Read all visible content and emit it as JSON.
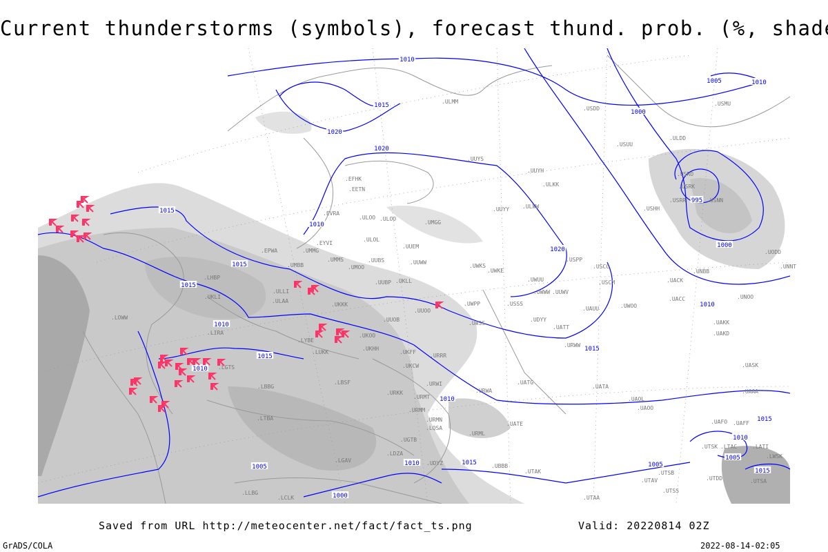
{
  "title": "Current thunderstorms (symbols), forecast thund. prob. (%, shaded)",
  "footer": {
    "source": "Saved from URL http://meteocenter.net/fact/fact_ts.png",
    "valid": "Valid: 20220814 02Z",
    "software": "GrADS/COLA",
    "timestamp": "2022-08-14-02:05"
  },
  "colors": {
    "isobar": "#0000ff",
    "coastline": "#999999",
    "thunderstorm_symbol": "#ff3366",
    "shading_light": "#dcdcdc",
    "shading_mid": "#c4c4c4",
    "shading_dark": "#a8a8a8"
  },
  "isobar_labels": [
    "1010",
    "1015",
    "1020",
    "1015",
    "1020",
    "1015",
    "1015",
    "1010",
    "1010",
    "1015",
    "1020",
    "1015",
    "1010",
    "1010",
    "1000",
    "1005",
    "1010",
    "995",
    "1000",
    "1010",
    "1015",
    "1010",
    "1005",
    "1005",
    "1000",
    "1010",
    "1015",
    "1005",
    "1015"
  ],
  "stations": [
    "ULMM",
    "ULOO",
    "EFHK",
    "EETN",
    "EVRA",
    "ULOO",
    "ULOL",
    "UUEM",
    "UUWW",
    "UMMG",
    "UMMS",
    "UMOO",
    "UUBS",
    "UMBB",
    "EYVI",
    "EPWA",
    "UKKK",
    "ULLI",
    "ULAA",
    "UUYS",
    "UUYH",
    "ULKK",
    "UUYY",
    "ULWW",
    "UMGG",
    "UUBP",
    "UKLL",
    "UKLI",
    "LHBP",
    "LOWW",
    "LIRA",
    "LYBE",
    "LUKK",
    "UKOO",
    "UKHH",
    "UUOB",
    "UUOO",
    "UWPP",
    "UWSS",
    "UWKS",
    "UWKE",
    "UWUU",
    "UWWW",
    "UUWV",
    "USSS",
    "USCC",
    "USCM",
    "UAUU",
    "UWOO",
    "UATT",
    "URWW",
    "URRR",
    "UKCW",
    "UKFF",
    "LBSF",
    "LGTS",
    "LBBG",
    "LTBA",
    "URWI",
    "URKK",
    "URMT",
    "URMM",
    "URMN",
    "URML",
    "UGTB",
    "UBBB",
    "UDYZ",
    "UTAK",
    "UATG",
    "UATE",
    "URWA",
    "UATA",
    "UAOL",
    "UAOO",
    "USUU",
    "UACK",
    "UACC",
    "UAKK",
    "UAKD",
    "USNN",
    "USRR",
    "USRK",
    "USRO",
    "USHH",
    "USDD",
    "ULDD",
    "USMU",
    "UODD",
    "UNNT",
    "UNBB",
    "UNOO",
    "UASK",
    "UAAA",
    "UTSS",
    "UTAA",
    "UTAV",
    "UTSB",
    "UTDD",
    "UTSK",
    "UTSA",
    "UAFF",
    "UAFO",
    "LTAC",
    "LCLK",
    "LLBG",
    "LGAV",
    "LDZA",
    "LQSA",
    "LWSK",
    "LATI",
    "USPP",
    "UDYY"
  ]
}
